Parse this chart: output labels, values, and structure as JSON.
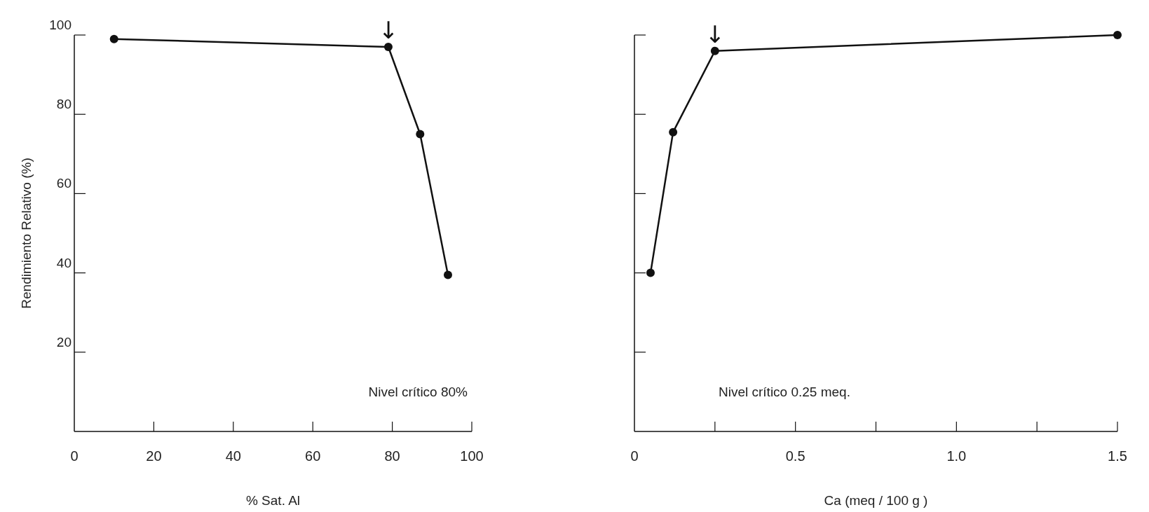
{
  "chart_data": [
    {
      "type": "line",
      "xlabel": "% Sat. Al",
      "ylabel": "Rendimiento Relativo (%)",
      "x": [
        10,
        79,
        87,
        94
      ],
      "series": [
        {
          "color": "#111111",
          "values": [
            99,
            97,
            75,
            39.5
          ]
        }
      ],
      "xlim": [
        0,
        100
      ],
      "xticks": [
        0,
        20,
        40,
        60,
        80,
        100
      ],
      "ylim": [
        0,
        100
      ],
      "yticks": [
        20,
        40,
        60,
        80,
        100
      ],
      "marker": "circle",
      "line_style": "solid",
      "annotations": [
        "Nivel crítico 80%",
        {
          "text": "↓",
          "x": 79,
          "y": 97
        }
      ]
    },
    {
      "type": "line",
      "xlabel": "Ca (meq / 100 g )",
      "x": [
        0.05,
        0.12,
        0.25,
        1.5
      ],
      "series": [
        {
          "color": "#111111",
          "values": [
            40,
            75.5,
            96,
            100
          ]
        }
      ],
      "xlim": [
        0,
        1.5
      ],
      "xticks": [
        0,
        {
          "value": 0.25,
          "label": null
        },
        0.5,
        {
          "value": 0.75,
          "label": null
        },
        {
          "value": 1.0,
          "label": "1.0"
        },
        {
          "value": 1.25,
          "label": null
        },
        1.5
      ],
      "ylim": [
        0,
        100
      ],
      "yticks": [
        20,
        40,
        60,
        80,
        100
      ],
      "tick_labels": "x",
      "marker": "circle",
      "line_style": "solid",
      "annotations": [
        "Nivel crítico 0.25 meq.",
        {
          "text": "↓",
          "x": 0.25,
          "y": 96
        }
      ]
    }
  ]
}
